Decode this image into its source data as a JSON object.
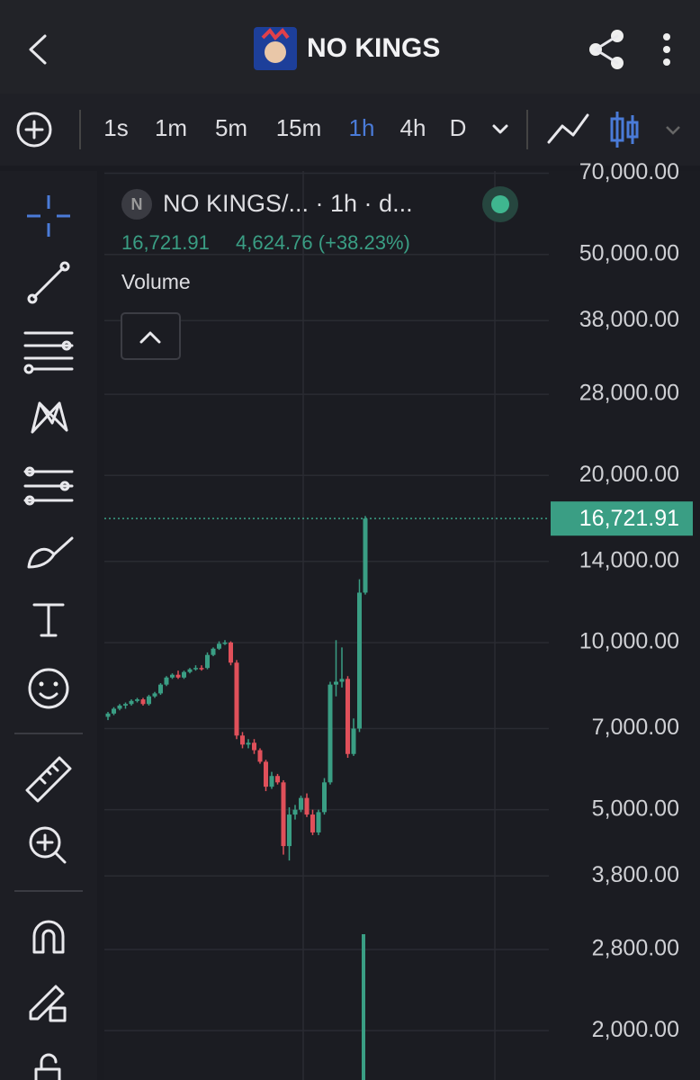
{
  "header": {
    "title": "NO KINGS"
  },
  "toolbar": {
    "intervals": [
      "1s",
      "1m",
      "5m",
      "15m",
      "1h",
      "4h",
      "D"
    ],
    "active_interval": "1h"
  },
  "chart_data": {
    "type": "candlestick",
    "legend_title": "NO KINGS/... · 1h · d...",
    "legend_price": "16,721.91",
    "legend_change": "4,624.76 (+38.23%)",
    "volume_label": "Volume",
    "log_scale": true,
    "up_color": "#3a9e84",
    "down_color": "#e0505a",
    "open": [
      7350,
      7450,
      7600,
      7700,
      7750,
      7850,
      7900,
      7750,
      8000,
      8100,
      8400,
      8650,
      8750,
      8650,
      8850,
      8950,
      9000,
      9000,
      9500,
      9750,
      9950,
      10000,
      9200,
      6800,
      6550,
      6600,
      6400,
      6100,
      5500,
      5750,
      5600,
      4300,
      4900,
      5000,
      5250,
      4900,
      4550,
      4950,
      5600,
      8400,
      8500,
      8600,
      6300,
      7000,
      12300
    ],
    "high": [
      7500,
      7650,
      7750,
      7800,
      7900,
      7950,
      7950,
      8050,
      8150,
      8450,
      8700,
      8800,
      8900,
      8900,
      9000,
      9100,
      9100,
      9600,
      9800,
      10050,
      10100,
      10050,
      9300,
      6900,
      6700,
      6700,
      6450,
      6150,
      5850,
      5800,
      5650,
      5050,
      5100,
      5300,
      5350,
      5000,
      5000,
      5700,
      8500,
      10100,
      9800,
      8700,
      7300,
      13000,
      16900
    ],
    "low": [
      7250,
      7400,
      7550,
      7600,
      7700,
      7800,
      7700,
      7700,
      7950,
      8050,
      8350,
      8600,
      8600,
      8600,
      8800,
      8900,
      8900,
      8950,
      9450,
      9700,
      9900,
      9100,
      6700,
      6450,
      6450,
      6300,
      6050,
      5400,
      5450,
      5550,
      4150,
      4050,
      4800,
      4950,
      4850,
      4500,
      4500,
      4900,
      5550,
      8000,
      8300,
      6200,
      6250,
      6900,
      12200
    ],
    "close": [
      7450,
      7600,
      7700,
      7750,
      7850,
      7900,
      7750,
      8000,
      8100,
      8400,
      8650,
      8750,
      8650,
      8850,
      8950,
      9000,
      8950,
      9500,
      9750,
      9950,
      10000,
      9200,
      6800,
      6550,
      6600,
      6400,
      6100,
      5500,
      5750,
      5600,
      4300,
      4900,
      5000,
      5250,
      4900,
      4550,
      4950,
      5600,
      8400,
      8500,
      8600,
      6300,
      7000,
      12300,
      16721.91
    ],
    "last_price": {
      "value": 16721.91,
      "label": "16,721.91"
    },
    "ylim": [
      1630,
      72000
    ],
    "yticks": [
      {
        "value": 70000,
        "label": "70,000.00"
      },
      {
        "value": 50000,
        "label": "50,000.00"
      },
      {
        "value": 38000,
        "label": "38,000.00"
      },
      {
        "value": 28000,
        "label": "28,000.00"
      },
      {
        "value": 20000,
        "label": "20,000.00"
      },
      {
        "value": 14000,
        "label": "14,000.00"
      },
      {
        "value": 10000,
        "label": "10,000.00"
      },
      {
        "value": 7000,
        "label": "7,000.00"
      },
      {
        "value": 5000,
        "label": "5,000.00"
      },
      {
        "value": 3800,
        "label": "3,800.00"
      },
      {
        "value": 2800,
        "label": "2,800.00"
      },
      {
        "value": 2000,
        "label": "2,000.00"
      }
    ],
    "grid": true
  }
}
